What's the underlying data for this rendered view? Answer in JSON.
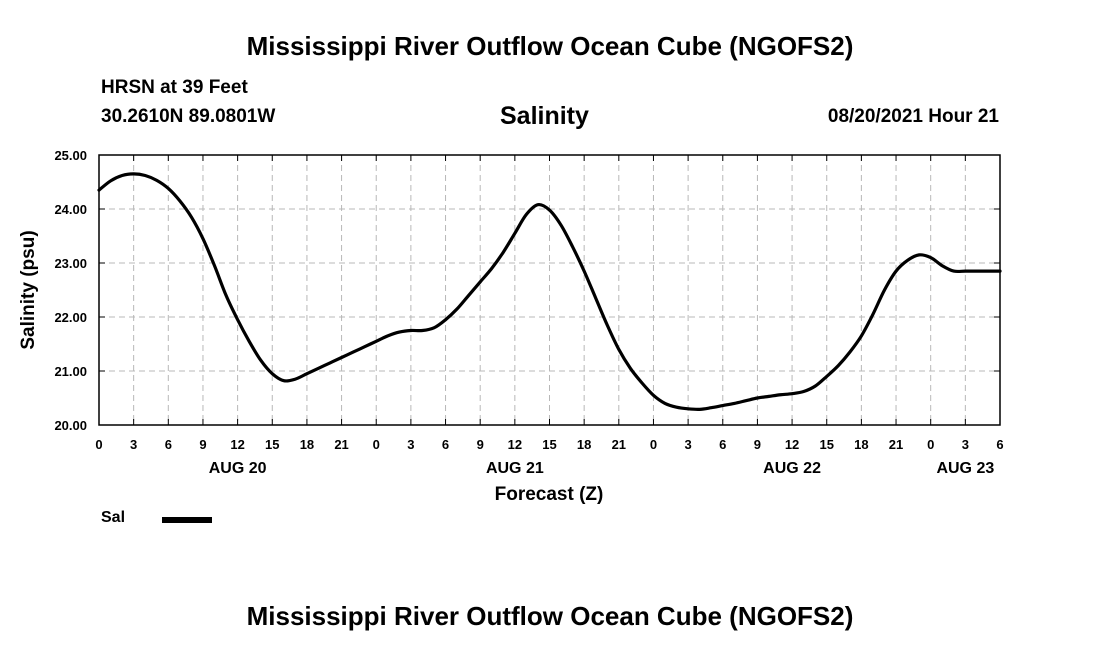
{
  "page_title": "Mississippi River Outflow Ocean Cube (NGOFS2)",
  "footer_title": "Mississippi River Outflow Ocean Cube (NGOFS2)",
  "station": {
    "name": "HRSN at 39 Feet",
    "coords": "30.2610N  89.0801W"
  },
  "plot_title": "Salinity",
  "issued": "08/20/2021 Hour 21",
  "legend": {
    "label": "Sal",
    "color": "#000000"
  },
  "chart_data": {
    "type": "line",
    "title": "Salinity",
    "xlabel": "Forecast (Z)",
    "ylabel": "Salinity (psu)",
    "xlim": [
      0,
      78
    ],
    "ylim": [
      20.0,
      25.0
    ],
    "y_ticks": [
      20.0,
      21.0,
      22.0,
      23.0,
      24.0,
      25.0
    ],
    "y_tick_labels": [
      "20.00",
      "21.00",
      "22.00",
      "23.00",
      "24.00",
      "25.00"
    ],
    "x_ticks": [
      0,
      3,
      6,
      9,
      12,
      15,
      18,
      21,
      24,
      27,
      30,
      33,
      36,
      39,
      42,
      45,
      48,
      51,
      54,
      57,
      60,
      63,
      66,
      69,
      72,
      75,
      78
    ],
    "x_tick_labels": [
      "0",
      "3",
      "6",
      "9",
      "12",
      "15",
      "18",
      "21",
      "0",
      "3",
      "6",
      "9",
      "12",
      "15",
      "18",
      "21",
      "0",
      "3",
      "6",
      "9",
      "12",
      "15",
      "18",
      "21",
      "0",
      "3",
      "6"
    ],
    "date_labels": [
      {
        "x": 12,
        "label": "AUG 20"
      },
      {
        "x": 36,
        "label": "AUG 21"
      },
      {
        "x": 60,
        "label": "AUG 22"
      },
      {
        "x": 75,
        "label": "AUG 23"
      }
    ],
    "grid": true,
    "series": [
      {
        "name": "Sal",
        "color": "#000000",
        "x": [
          0,
          1,
          2,
          3,
          4,
          5,
          6,
          7,
          8,
          9,
          10,
          11,
          12,
          13,
          14,
          15,
          16,
          17,
          18,
          19,
          20,
          21,
          22,
          23,
          24,
          25,
          26,
          27,
          28,
          29,
          30,
          31,
          32,
          33,
          34,
          35,
          36,
          37,
          38,
          39,
          40,
          41,
          42,
          43,
          44,
          45,
          46,
          47,
          48,
          49,
          50,
          51,
          52,
          53,
          54,
          55,
          56,
          57,
          58,
          59,
          60,
          61,
          62,
          63,
          64,
          65,
          66,
          67,
          68,
          69,
          70,
          71,
          72,
          73,
          74,
          75,
          76,
          77,
          78
        ],
        "y": [
          24.35,
          24.52,
          24.62,
          24.65,
          24.62,
          24.53,
          24.38,
          24.15,
          23.85,
          23.45,
          22.95,
          22.4,
          21.95,
          21.55,
          21.2,
          20.95,
          20.82,
          20.85,
          20.95,
          21.05,
          21.15,
          21.25,
          21.35,
          21.45,
          21.55,
          21.65,
          21.72,
          21.75,
          21.75,
          21.8,
          21.95,
          22.15,
          22.4,
          22.65,
          22.9,
          23.2,
          23.55,
          23.9,
          24.08,
          23.98,
          23.7,
          23.3,
          22.85,
          22.35,
          21.85,
          21.4,
          21.05,
          20.78,
          20.55,
          20.4,
          20.33,
          20.3,
          20.29,
          20.32,
          20.36,
          20.4,
          20.45,
          20.5,
          20.53,
          20.56,
          20.58,
          20.62,
          20.72,
          20.9,
          21.1,
          21.35,
          21.65,
          22.05,
          22.5,
          22.85,
          23.05,
          23.15,
          23.1,
          22.95,
          22.85,
          22.85,
          22.85,
          22.85,
          22.85
        ]
      }
    ]
  }
}
